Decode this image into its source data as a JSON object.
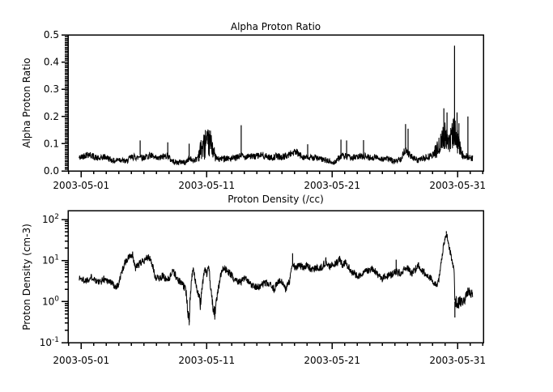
{
  "figure": {
    "background": "#ffffff",
    "foreground": "#000000"
  },
  "chart_data": [
    {
      "type": "line",
      "title": "Alpha Proton Ratio",
      "ylabel": "Alpha Proton Ratio",
      "xlabel": "",
      "series_name": "alpha-proton-ratio",
      "line_color": "#000000",
      "y_scale": "linear",
      "y_range": [
        0.0,
        0.5
      ],
      "y_tick_values": [
        0.0,
        0.1,
        0.2,
        0.3,
        0.4,
        0.5
      ],
      "y_tick_labels": [
        "0.0",
        "0.1",
        "0.2",
        "0.3",
        "0.4",
        "0.5"
      ],
      "y_minor_per_major": 15,
      "x_tick_days": [
        0,
        10,
        20,
        30
      ],
      "x_tick_labels": [
        "2003-05-01",
        "2003-05-11",
        "2003-05-21",
        "2003-05-31"
      ],
      "x_minor_step_days": 1,
      "x_range_days": [
        -1.05,
        32.05
      ],
      "data_range_days": [
        -0.17,
        31.2
      ],
      "noise": {
        "base": 0.006,
        "proportional": 0.12
      },
      "baseline": [
        [
          -0.17,
          0.048
        ],
        [
          0,
          0.05
        ],
        [
          0.3,
          0.058
        ],
        [
          0.6,
          0.062
        ],
        [
          0.9,
          0.055
        ],
        [
          1.2,
          0.048
        ],
        [
          1.5,
          0.044
        ],
        [
          1.8,
          0.052
        ],
        [
          2.1,
          0.048
        ],
        [
          2.4,
          0.04
        ],
        [
          2.7,
          0.036
        ],
        [
          3,
          0.044
        ],
        [
          3.3,
          0.038
        ],
        [
          3.6,
          0.034
        ],
        [
          3.9,
          0.048
        ],
        [
          4.2,
          0.052
        ],
        [
          4.5,
          0.048
        ],
        [
          4.7,
          0.058
        ],
        [
          4.9,
          0.048
        ],
        [
          5.2,
          0.052
        ],
        [
          5.5,
          0.058
        ],
        [
          5.8,
          0.048
        ],
        [
          6.1,
          0.044
        ],
        [
          6.4,
          0.05
        ],
        [
          6.7,
          0.054
        ],
        [
          6.9,
          0.058
        ],
        [
          7.1,
          0.042
        ],
        [
          7.4,
          0.034
        ],
        [
          7.7,
          0.03
        ],
        [
          8,
          0.034
        ],
        [
          8.3,
          0.03
        ],
        [
          8.6,
          0.046
        ],
        [
          8.9,
          0.038
        ],
        [
          9.2,
          0.044
        ],
        [
          9.4,
          0.065,
          0.03
        ],
        [
          9.6,
          0.085,
          0.045
        ],
        [
          9.8,
          0.09,
          0.05
        ],
        [
          10,
          0.095,
          0.05
        ],
        [
          10.2,
          0.1,
          0.05
        ],
        [
          10.35,
          0.095,
          0.045
        ],
        [
          10.5,
          0.085,
          0.04
        ],
        [
          10.65,
          0.055,
          0.02
        ],
        [
          10.8,
          0.045
        ],
        [
          11,
          0.042
        ],
        [
          11.5,
          0.048
        ],
        [
          12,
          0.044
        ],
        [
          12.5,
          0.05
        ],
        [
          12.75,
          0.058
        ],
        [
          13,
          0.05
        ],
        [
          13.3,
          0.058
        ],
        [
          13.6,
          0.052
        ],
        [
          14,
          0.054
        ],
        [
          14.4,
          0.058
        ],
        [
          14.8,
          0.052
        ],
        [
          15.2,
          0.048
        ],
        [
          15.6,
          0.054
        ],
        [
          16,
          0.05
        ],
        [
          16.4,
          0.056
        ],
        [
          16.8,
          0.066
        ],
        [
          17.1,
          0.07
        ],
        [
          17.4,
          0.058
        ],
        [
          17.8,
          0.05
        ],
        [
          18.2,
          0.046
        ],
        [
          18.6,
          0.05
        ],
        [
          19,
          0.044
        ],
        [
          19.4,
          0.04
        ],
        [
          19.8,
          0.034
        ],
        [
          20.1,
          0.028
        ],
        [
          20.4,
          0.042
        ],
        [
          20.75,
          0.055
        ],
        [
          21.1,
          0.052
        ],
        [
          21.5,
          0.048
        ],
        [
          22,
          0.05
        ],
        [
          22.5,
          0.056
        ],
        [
          23,
          0.048
        ],
        [
          23.5,
          0.05
        ],
        [
          24,
          0.044
        ],
        [
          24.5,
          0.044
        ],
        [
          25,
          0.034
        ],
        [
          25.5,
          0.046
        ],
        [
          25.85,
          0.08
        ],
        [
          26.1,
          0.062
        ],
        [
          26.4,
          0.048
        ],
        [
          26.8,
          0.04
        ],
        [
          27.2,
          0.044
        ],
        [
          27.6,
          0.05
        ],
        [
          28,
          0.058
        ],
        [
          28.3,
          0.075,
          0.03
        ],
        [
          28.6,
          0.095,
          0.035
        ],
        [
          28.9,
          0.13,
          0.055
        ],
        [
          29.1,
          0.12,
          0.05
        ],
        [
          29.3,
          0.11,
          0.045
        ],
        [
          29.5,
          0.125,
          0.05
        ],
        [
          29.75,
          0.15,
          0.055
        ],
        [
          29.9,
          0.12,
          0.05
        ],
        [
          30.1,
          0.09,
          0.04
        ],
        [
          30.3,
          0.065,
          0.02
        ],
        [
          30.5,
          0.052
        ],
        [
          30.7,
          0.058
        ],
        [
          30.9,
          0.048
        ],
        [
          31.1,
          0.046
        ],
        [
          31.2,
          0.047
        ]
      ],
      "spikes": [
        [
          4.7,
          0.112
        ],
        [
          6.9,
          0.105
        ],
        [
          8.6,
          0.1
        ],
        [
          9.9,
          0.15
        ],
        [
          10.1,
          0.152
        ],
        [
          10.3,
          0.148
        ],
        [
          12.75,
          0.168
        ],
        [
          18.05,
          0.098
        ],
        [
          20.7,
          0.115
        ],
        [
          21.15,
          0.112
        ],
        [
          22.5,
          0.113
        ],
        [
          25.85,
          0.172
        ],
        [
          26.05,
          0.155
        ],
        [
          28.9,
          0.23
        ],
        [
          29.15,
          0.215
        ],
        [
          29.75,
          0.46
        ],
        [
          29.95,
          0.215
        ],
        [
          30.1,
          0.175
        ],
        [
          30.82,
          0.2
        ]
      ]
    },
    {
      "type": "line",
      "title": "Proton Density (/cc)",
      "ylabel": "Proton Density (cm-3)",
      "xlabel": "",
      "series_name": "proton-density",
      "line_color": "#000000",
      "y_scale": "log",
      "y_range_exp": [
        -1,
        2.217
      ],
      "y_decade_exponents": [
        -1,
        0,
        1,
        2
      ],
      "y_tick_base": "10",
      "x_tick_days": [
        0,
        10,
        20,
        30
      ],
      "x_tick_labels": [
        "2003-05-01",
        "2003-05-11",
        "2003-05-21",
        "2003-05-31"
      ],
      "x_minor_step_days": 1,
      "x_range_days": [
        -1.05,
        32.05
      ],
      "data_range_days": [
        -0.17,
        31.2
      ],
      "noise_log": 0.09,
      "baseline": [
        [
          -0.17,
          3.8
        ],
        [
          0,
          3.6
        ],
        [
          0.3,
          3.2
        ],
        [
          0.6,
          3.6
        ],
        [
          0.9,
          4
        ],
        [
          1.2,
          3.2
        ],
        [
          1.5,
          2.9
        ],
        [
          1.8,
          3.6
        ],
        [
          2.1,
          3.3
        ],
        [
          2.4,
          2.9
        ],
        [
          2.7,
          2.3
        ],
        [
          3,
          2.6
        ],
        [
          3.3,
          6
        ],
        [
          3.5,
          9
        ],
        [
          3.7,
          11
        ],
        [
          3.9,
          13
        ],
        [
          4.1,
          12
        ],
        [
          4.3,
          6.5
        ],
        [
          4.6,
          8
        ],
        [
          4.9,
          9.5
        ],
        [
          5.2,
          12
        ],
        [
          5.5,
          11
        ],
        [
          5.7,
          7
        ],
        [
          5.9,
          4
        ],
        [
          6.2,
          3.6
        ],
        [
          6.5,
          4.2
        ],
        [
          6.8,
          3.4
        ],
        [
          7.1,
          4
        ],
        [
          7.3,
          6
        ],
        [
          7.6,
          3.6
        ],
        [
          8,
          2.8
        ],
        [
          8.3,
          2
        ],
        [
          8.5,
          0.6,
          0.18
        ],
        [
          8.62,
          0.35,
          0.15
        ],
        [
          8.75,
          2.2
        ],
        [
          8.9,
          6
        ],
        [
          9.1,
          3
        ],
        [
          9.3,
          1.6
        ],
        [
          9.5,
          0.8,
          0.18
        ],
        [
          9.7,
          3
        ],
        [
          9.85,
          6.5
        ],
        [
          10,
          4.5
        ],
        [
          10.15,
          7.5
        ],
        [
          10.3,
          2
        ],
        [
          10.5,
          0.7,
          0.15
        ],
        [
          10.65,
          0.48,
          0.15
        ],
        [
          10.8,
          1.1
        ],
        [
          11,
          2.6
        ],
        [
          11.3,
          7
        ],
        [
          11.5,
          6
        ],
        [
          11.8,
          5
        ],
        [
          12.1,
          3.8
        ],
        [
          12.4,
          3.4
        ],
        [
          12.7,
          3
        ],
        [
          13,
          3.6
        ],
        [
          13.4,
          2.8
        ],
        [
          13.8,
          2.4
        ],
        [
          14.2,
          2.2
        ],
        [
          14.6,
          2.8
        ],
        [
          15,
          2.6
        ],
        [
          15.4,
          2
        ],
        [
          15.7,
          3.2
        ],
        [
          16,
          2.9
        ],
        [
          16.3,
          1.9
        ],
        [
          16.6,
          3.2
        ],
        [
          16.85,
          8
        ],
        [
          17.1,
          6.5
        ],
        [
          17.4,
          7.5
        ],
        [
          17.7,
          7
        ],
        [
          18,
          7.5
        ],
        [
          18.4,
          6
        ],
        [
          18.8,
          6.5
        ],
        [
          19.2,
          7
        ],
        [
          19.5,
          9.5
        ],
        [
          19.8,
          7
        ],
        [
          20.1,
          8
        ],
        [
          20.45,
          9
        ],
        [
          20.6,
          11
        ],
        [
          20.8,
          8
        ],
        [
          21.1,
          8.5
        ],
        [
          21.4,
          6
        ],
        [
          21.7,
          5
        ],
        [
          22,
          4.2
        ],
        [
          22.4,
          4.6
        ],
        [
          22.8,
          5.5
        ],
        [
          23.1,
          6.5
        ],
        [
          23.4,
          5.5
        ],
        [
          23.7,
          4
        ],
        [
          24,
          3.6
        ],
        [
          24.4,
          4.2
        ],
        [
          24.8,
          4.6
        ],
        [
          25.1,
          5.5
        ],
        [
          25.4,
          5
        ],
        [
          25.7,
          6
        ],
        [
          26,
          6.5
        ],
        [
          26.3,
          4.8
        ],
        [
          26.6,
          6
        ],
        [
          26.9,
          7.5
        ],
        [
          27.2,
          5.5
        ],
        [
          27.5,
          4.8
        ],
        [
          27.8,
          3.8
        ],
        [
          28.1,
          2.9
        ],
        [
          28.35,
          2.5
        ],
        [
          28.55,
          4
        ],
        [
          28.75,
          12,
          0.08
        ],
        [
          28.95,
          30,
          0.07
        ],
        [
          29.1,
          45,
          0.06
        ],
        [
          29.25,
          28,
          0.07
        ],
        [
          29.4,
          16,
          0.08
        ],
        [
          29.55,
          10
        ],
        [
          29.68,
          7
        ],
        [
          29.78,
          1.0,
          0.2
        ],
        [
          29.9,
          1.0,
          0.15
        ],
        [
          30.1,
          0.9,
          0.15
        ],
        [
          30.3,
          1.1,
          0.15
        ],
        [
          30.5,
          1.0,
          0.15
        ],
        [
          30.7,
          1.6,
          0.12
        ],
        [
          30.9,
          1.9,
          0.12
        ],
        [
          31.05,
          1.4,
          0.12
        ],
        [
          31.2,
          1.7,
          0.12
        ]
      ],
      "spikes": [
        [
          4.1,
          16.5
        ],
        [
          8.62,
          0.32
        ],
        [
          10.65,
          0.43
        ],
        [
          16.85,
          15
        ],
        [
          19.5,
          12
        ],
        [
          20.6,
          13
        ],
        [
          25.1,
          10.5
        ],
        [
          29.1,
          52
        ],
        [
          29.78,
          0.41
        ]
      ]
    }
  ]
}
